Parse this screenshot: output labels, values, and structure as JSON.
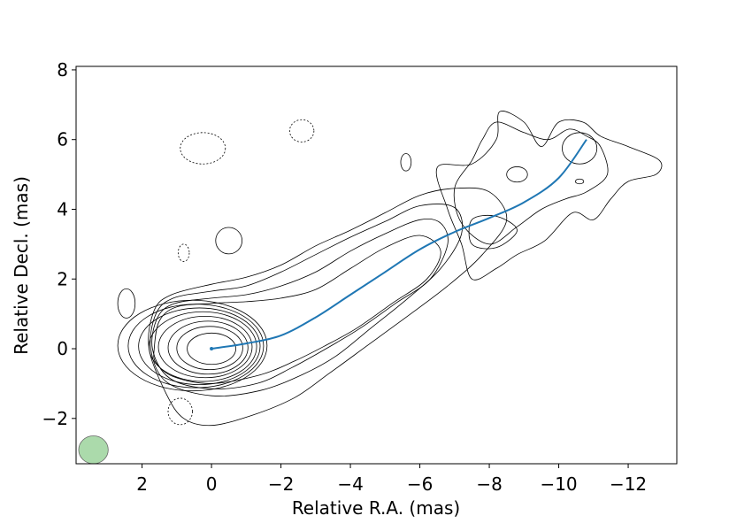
{
  "chart_data": {
    "type": "contour",
    "xlabel": "Relative R.A. (mas)",
    "ylabel": "Relative Decl. (mas)",
    "xlim": [
      3.9,
      -13.4
    ],
    "ylim": [
      -3.3,
      8.1
    ],
    "xticks": [
      2,
      0,
      -2,
      -4,
      -6,
      -8,
      -10,
      -12
    ],
    "xtick_labels": [
      "2",
      "0",
      "−2",
      "−4",
      "−6",
      "−8",
      "−10",
      "−12"
    ],
    "yticks": [
      -2,
      0,
      2,
      4,
      6,
      8
    ],
    "ytick_labels": [
      "−2",
      "0",
      "2",
      "4",
      "6",
      "8"
    ],
    "grid": false,
    "contour_color": "#000000",
    "line_color": "#1f77b4",
    "beam_color": "#8fce8f",
    "beam": {
      "x": 3.4,
      "y": -2.9,
      "width": 0.85,
      "height": 0.8
    },
    "core_contours": [
      {
        "cx": 0.0,
        "cy": 0.0,
        "rx": 0.7,
        "ry": 0.45
      },
      {
        "cx": 0.05,
        "cy": 0.02,
        "rx": 0.95,
        "ry": 0.62
      },
      {
        "cx": 0.1,
        "cy": 0.03,
        "rx": 1.15,
        "ry": 0.76
      },
      {
        "cx": 0.18,
        "cy": 0.05,
        "rx": 1.35,
        "ry": 0.88
      },
      {
        "cx": 0.25,
        "cy": 0.06,
        "rx": 1.55,
        "ry": 1.0
      },
      {
        "cx": 0.35,
        "cy": 0.07,
        "rx": 1.75,
        "ry": 1.1
      },
      {
        "cx": 0.45,
        "cy": 0.08,
        "rx": 1.95,
        "ry": 1.2
      },
      {
        "cx": 0.55,
        "cy": 0.09,
        "rx": 2.15,
        "ry": 1.3
      }
    ],
    "jet_contours": [
      [
        [
          1.65,
          0.0
        ],
        [
          1.5,
          0.8
        ],
        [
          1.0,
          1.2
        ],
        [
          0.0,
          1.3
        ],
        [
          -1.0,
          1.35
        ],
        [
          -2.0,
          1.45
        ],
        [
          -3.0,
          1.7
        ],
        [
          -4.0,
          2.3
        ],
        [
          -5.0,
          2.9
        ],
        [
          -6.0,
          3.25
        ],
        [
          -6.6,
          2.8
        ],
        [
          -6.2,
          2.0
        ],
        [
          -5.2,
          1.3
        ],
        [
          -4.2,
          0.6
        ],
        [
          -3.3,
          0.1
        ],
        [
          -2.4,
          -0.35
        ],
        [
          -1.4,
          -0.75
        ],
        [
          0.0,
          -1.0
        ],
        [
          1.1,
          -0.8
        ],
        [
          1.6,
          -0.4
        ]
      ],
      [
        [
          1.7,
          0.0
        ],
        [
          1.55,
          0.9
        ],
        [
          1.05,
          1.3
        ],
        [
          0.0,
          1.45
        ],
        [
          -1.0,
          1.55
        ],
        [
          -2.0,
          1.8
        ],
        [
          -3.0,
          2.2
        ],
        [
          -4.0,
          2.8
        ],
        [
          -5.0,
          3.3
        ],
        [
          -6.0,
          3.7
        ],
        [
          -6.6,
          3.6
        ],
        [
          -6.8,
          3.0
        ],
        [
          -6.3,
          2.0
        ],
        [
          -5.3,
          1.3
        ],
        [
          -4.3,
          0.6
        ],
        [
          -3.3,
          0.0
        ],
        [
          -2.3,
          -0.55
        ],
        [
          -1.3,
          -1.0
        ],
        [
          0.0,
          -1.15
        ],
        [
          1.2,
          -0.85
        ]
      ],
      [
        [
          1.75,
          0.0
        ],
        [
          1.6,
          1.0
        ],
        [
          1.1,
          1.45
        ],
        [
          0.0,
          1.65
        ],
        [
          -1.0,
          1.8
        ],
        [
          -2.0,
          2.2
        ],
        [
          -3.0,
          2.7
        ],
        [
          -4.0,
          3.2
        ],
        [
          -5.0,
          3.65
        ],
        [
          -6.0,
          4.1
        ],
        [
          -7.0,
          4.05
        ],
        [
          -7.2,
          3.3
        ],
        [
          -6.6,
          2.3
        ],
        [
          -5.6,
          1.4
        ],
        [
          -4.6,
          0.6
        ],
        [
          -3.6,
          -0.2
        ],
        [
          -2.6,
          -0.75
        ],
        [
          -1.4,
          -1.2
        ],
        [
          0.0,
          -1.35
        ],
        [
          1.3,
          -0.95
        ]
      ],
      [
        [
          1.8,
          0.0
        ],
        [
          1.65,
          1.1
        ],
        [
          1.15,
          1.55
        ],
        [
          0.0,
          1.85
        ],
        [
          -1.0,
          2.05
        ],
        [
          -2.0,
          2.4
        ],
        [
          -3.0,
          2.95
        ],
        [
          -4.0,
          3.4
        ],
        [
          -5.0,
          3.9
        ],
        [
          -6.0,
          4.4
        ],
        [
          -7.0,
          4.6
        ],
        [
          -8.0,
          4.5
        ],
        [
          -8.5,
          3.7
        ],
        [
          -7.8,
          2.7
        ],
        [
          -6.8,
          1.8
        ],
        [
          -5.6,
          0.9
        ],
        [
          -4.5,
          0.1
        ],
        [
          -3.4,
          -0.7
        ],
        [
          -2.4,
          -1.4
        ],
        [
          -1.2,
          -1.9
        ],
        [
          0.0,
          -2.2
        ],
        [
          0.8,
          -2.0
        ],
        [
          1.3,
          -1.3
        ]
      ],
      [
        [
          -6.5,
          5.2
        ],
        [
          -7.5,
          5.3
        ],
        [
          -8.2,
          6.0
        ],
        [
          -8.3,
          6.8
        ],
        [
          -9.0,
          6.5
        ],
        [
          -9.5,
          5.8
        ],
        [
          -10.0,
          6.5
        ],
        [
          -10.7,
          6.5
        ],
        [
          -11.2,
          6.1
        ],
        [
          -12.0,
          5.8
        ],
        [
          -12.9,
          5.4
        ],
        [
          -12.8,
          5.0
        ],
        [
          -12.0,
          4.8
        ],
        [
          -11.5,
          4.3
        ],
        [
          -11.0,
          3.7
        ],
        [
          -10.4,
          3.9
        ],
        [
          -9.6,
          3.1
        ],
        [
          -8.8,
          2.7
        ],
        [
          -8.2,
          2.3
        ],
        [
          -7.5,
          2.0
        ],
        [
          -7.2,
          3.0
        ],
        [
          -6.8,
          4.0
        ]
      ],
      [
        [
          -7.8,
          6.0
        ],
        [
          -8.2,
          6.5
        ],
        [
          -9.0,
          6.2
        ],
        [
          -9.7,
          6.0
        ],
        [
          -10.3,
          6.3
        ],
        [
          -10.8,
          6.1
        ],
        [
          -11.2,
          5.8
        ],
        [
          -11.4,
          5.0
        ],
        [
          -10.8,
          4.5
        ],
        [
          -10.2,
          4.3
        ],
        [
          -9.5,
          4.0
        ],
        [
          -8.8,
          3.5
        ],
        [
          -8.0,
          3.0
        ],
        [
          -7.2,
          3.6
        ],
        [
          -7.0,
          4.6
        ],
        [
          -7.5,
          5.4
        ]
      ],
      [
        [
          -7.5,
          3.7
        ],
        [
          -8.2,
          3.8
        ],
        [
          -8.8,
          3.4
        ],
        [
          -8.2,
          2.9
        ],
        [
          -7.5,
          3.0
        ]
      ]
    ],
    "small_contours": [
      {
        "cx": -0.5,
        "cy": 3.1,
        "rx": 0.38,
        "ry": 0.38,
        "dashed": false
      },
      {
        "cx": 2.45,
        "cy": 1.3,
        "rx": 0.25,
        "ry": 0.42,
        "dashed": false
      },
      {
        "cx": -5.6,
        "cy": 5.35,
        "rx": 0.15,
        "ry": 0.25,
        "dashed": false
      },
      {
        "cx": -8.8,
        "cy": 5.0,
        "rx": 0.3,
        "ry": 0.22,
        "dashed": false
      },
      {
        "cx": -10.6,
        "cy": 5.75,
        "rx": 0.5,
        "ry": 0.45,
        "dashed": false
      },
      {
        "cx": -10.6,
        "cy": 4.8,
        "rx": 0.12,
        "ry": 0.07,
        "dashed": false
      },
      {
        "cx": 0.25,
        "cy": 5.75,
        "rx": 0.65,
        "ry": 0.45,
        "dashed": true
      },
      {
        "cx": -2.6,
        "cy": 6.25,
        "rx": 0.35,
        "ry": 0.32,
        "dashed": true
      },
      {
        "cx": 0.8,
        "cy": 2.75,
        "rx": 0.16,
        "ry": 0.25,
        "dashed": true
      },
      {
        "cx": 0.9,
        "cy": -1.8,
        "rx": 0.35,
        "ry": 0.38,
        "dashed": true
      }
    ],
    "jet_ridge": [
      [
        0.0,
        0.0
      ],
      [
        -1.0,
        0.15
      ],
      [
        -2.0,
        0.38
      ],
      [
        -3.0,
        0.9
      ],
      [
        -4.0,
        1.55
      ],
      [
        -5.0,
        2.2
      ],
      [
        -6.0,
        2.85
      ],
      [
        -7.0,
        3.35
      ],
      [
        -8.0,
        3.75
      ],
      [
        -9.0,
        4.2
      ],
      [
        -10.0,
        4.9
      ],
      [
        -10.8,
        6.0
      ]
    ]
  }
}
